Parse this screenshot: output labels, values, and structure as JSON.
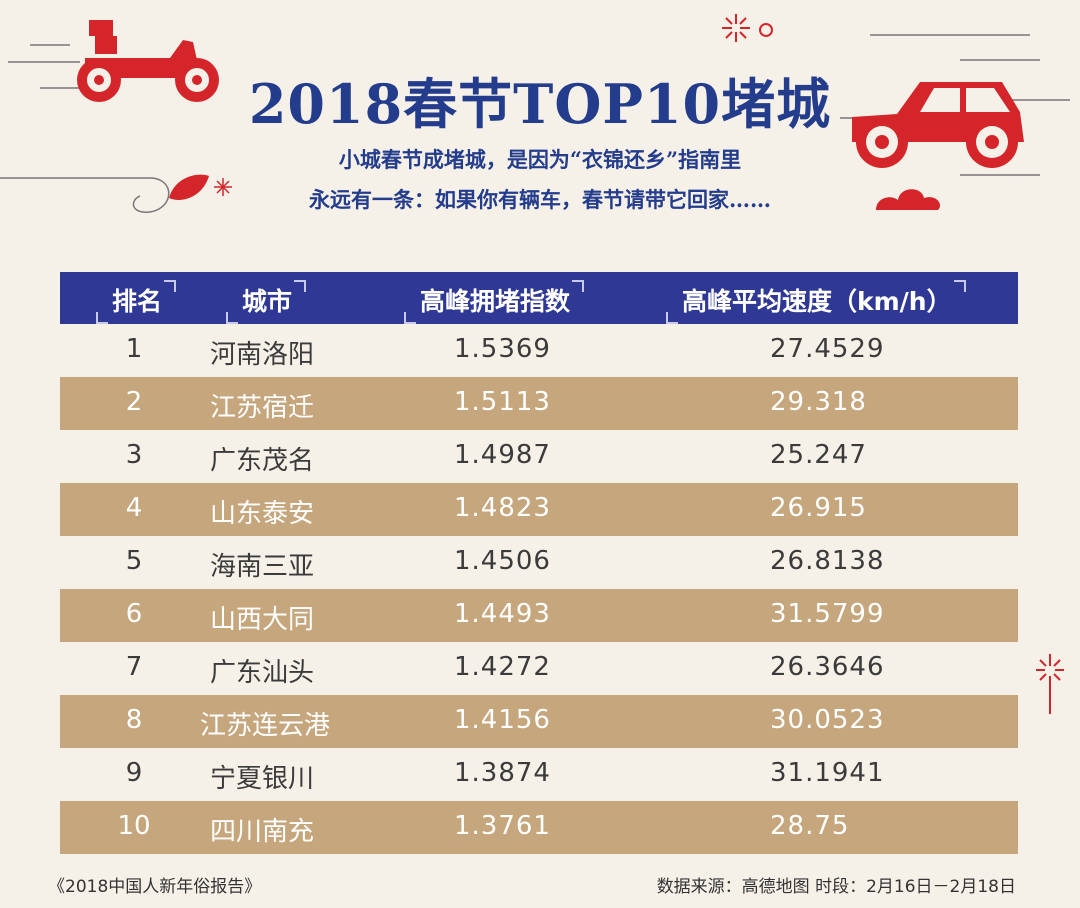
{
  "title": "2018春节TOP10堵城",
  "subtitle_line1": "小城春节成堵城，是因为“衣锦还乡”指南里",
  "subtitle_line2": "永远有一条：如果你有辆车，春节请带它回家……",
  "table": {
    "headers": [
      "排名",
      "城市",
      "高峰拥堵指数",
      "高峰平均速度（km/h）"
    ],
    "rows": [
      {
        "rank": "1",
        "city": "河南洛阳",
        "index": "1.5369",
        "speed": "27.4529"
      },
      {
        "rank": "2",
        "city": "江苏宿迁",
        "index": "1.5113",
        "speed": "29.318"
      },
      {
        "rank": "3",
        "city": "广东茂名",
        "index": "1.4987",
        "speed": "25.247"
      },
      {
        "rank": "4",
        "city": "山东泰安",
        "index": "1.4823",
        "speed": "26.915"
      },
      {
        "rank": "5",
        "city": "海南三亚",
        "index": "1.4506",
        "speed": "26.8138"
      },
      {
        "rank": "6",
        "city": "山西大同",
        "index": "1.4493",
        "speed": "31.5799"
      },
      {
        "rank": "7",
        "city": "广东汕头",
        "index": "1.4272",
        "speed": "26.3646"
      },
      {
        "rank": "8",
        "city": "江苏连云港",
        "index": "1.4156",
        "speed": "30.0523"
      },
      {
        "rank": "9",
        "city": "宁夏银川",
        "index": "1.3874",
        "speed": "31.1941"
      },
      {
        "rank": "10",
        "city": "四川南充",
        "index": "1.3761",
        "speed": "28.75"
      }
    ]
  },
  "footer": {
    "report": "《2018中国人新年俗报告》",
    "source": "数据来源：高德地图   时段：2月16日－2月18日"
  },
  "colors": {
    "title": "#233c8c",
    "header_bg": "#2f3995",
    "stripe": "#c6a67c",
    "accent_red": "#d4262a",
    "background": "#f6f1e8"
  },
  "icons": [
    "motorcycle-icon",
    "car-icon",
    "firework-icon",
    "leaf-icon",
    "cloud-icon"
  ]
}
